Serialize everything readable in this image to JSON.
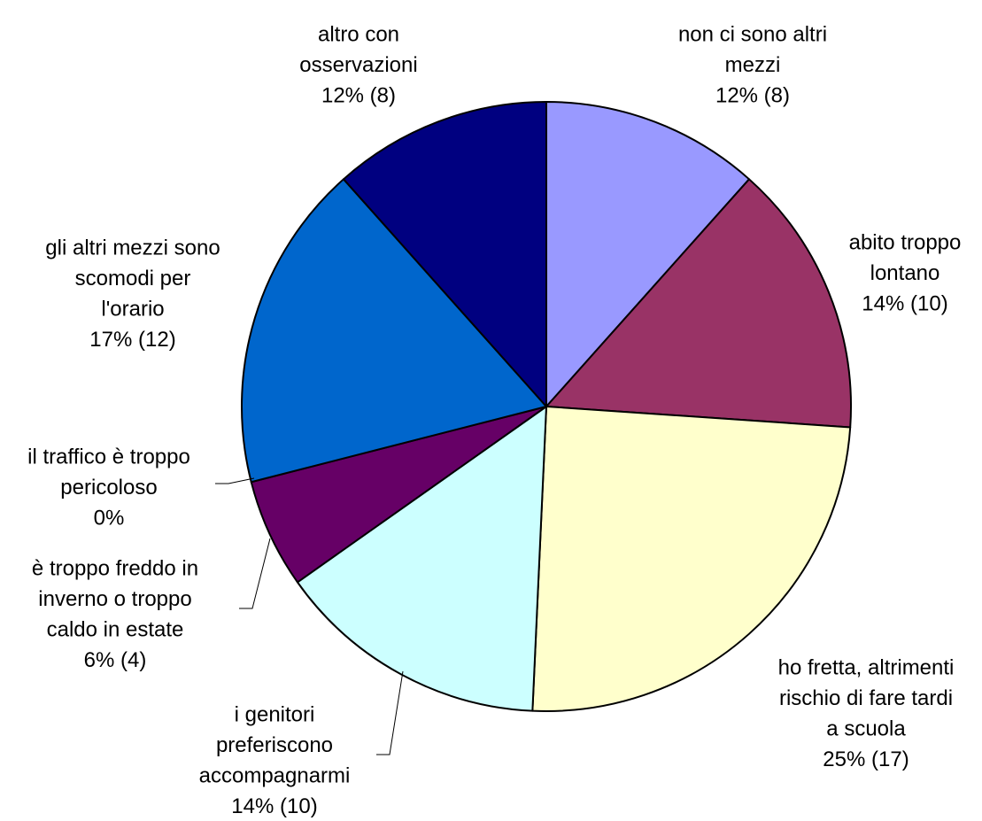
{
  "chart_data": {
    "type": "pie",
    "title": "",
    "slices": [
      {
        "lines": [
          "non ci sono altri",
          "mezzi",
          "12%  (8)"
        ],
        "percent": 12,
        "count": 8,
        "color": "#9999ff"
      },
      {
        "lines": [
          "abito troppo",
          "lontano",
          "14%  (10)"
        ],
        "percent": 14,
        "count": 10,
        "color": "#993366"
      },
      {
        "lines": [
          "ho fretta, altrimenti",
          "rischio di fare tardi",
          "a scuola",
          "25%  (17)"
        ],
        "percent": 25,
        "count": 17,
        "color": "#ffffcc"
      },
      {
        "lines": [
          "i genitori",
          "preferiscono",
          "accompagnarmi",
          "14%  (10)"
        ],
        "percent": 14,
        "count": 10,
        "color": "#ccffff"
      },
      {
        "lines": [
          "è troppo freddo in",
          "inverno o troppo",
          "caldo in estate",
          "6%  (4)"
        ],
        "percent": 6,
        "count": 4,
        "color": "#660066"
      },
      {
        "lines": [
          "il traffico è troppo",
          "pericoloso",
          "0%"
        ],
        "percent": 0,
        "count": 0,
        "color": "#ff8080"
      },
      {
        "lines": [
          "gli altri mezzi sono",
          "scomodi per",
          "l'orario",
          "17%  (12)"
        ],
        "percent": 17,
        "count": 12,
        "color": "#0066cc"
      },
      {
        "lines": [
          "altro con",
          "osservazioni",
          "12%  (8)"
        ],
        "percent": 12,
        "count": 8,
        "color": "#000080"
      }
    ]
  }
}
